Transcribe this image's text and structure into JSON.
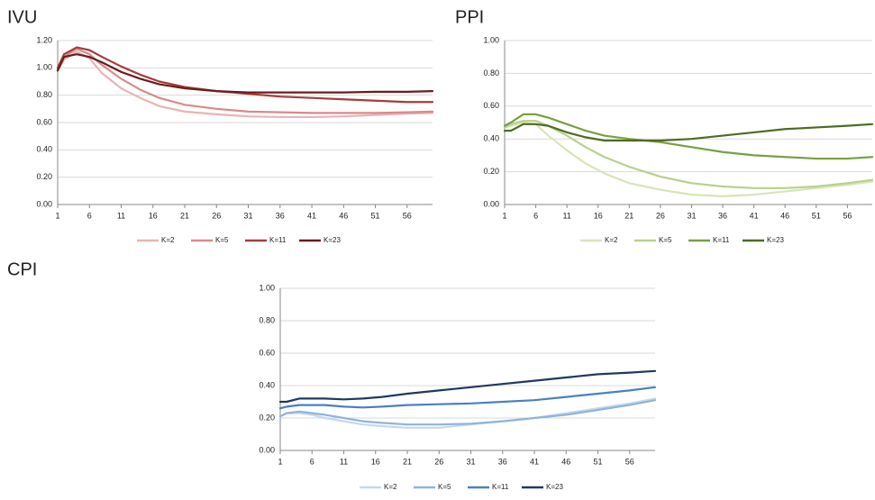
{
  "chart_data": [
    {
      "type": "line",
      "title": "IVU",
      "x": [
        1,
        2,
        4,
        6,
        8,
        11,
        14,
        17,
        21,
        26,
        31,
        36,
        41,
        46,
        51,
        56,
        60
      ],
      "xlim": [
        1,
        60
      ],
      "xticks": [
        1,
        6,
        11,
        16,
        21,
        26,
        31,
        36,
        41,
        46,
        51,
        56
      ],
      "ylim": [
        0,
        1.2
      ],
      "yticks": [
        {
          "value": 0,
          "label": "0.00"
        },
        {
          "value": 0.2,
          "label": "0.20"
        },
        {
          "value": 0.4,
          "label": "0.40"
        },
        {
          "value": 0.6,
          "label": "0.60"
        },
        {
          "value": 0.8,
          "label": "0.80"
        },
        {
          "value": 1.0,
          "label": "1.00"
        },
        {
          "value": 1.2,
          "label": "1.20"
        }
      ],
      "grid": true,
      "legend": "bottom",
      "series": [
        {
          "name": "K=2",
          "color": "#e8b4b4",
          "values": [
            0.98,
            1.06,
            1.12,
            1.07,
            0.96,
            0.85,
            0.78,
            0.72,
            0.68,
            0.66,
            0.645,
            0.64,
            0.64,
            0.645,
            0.655,
            0.665,
            0.67
          ]
        },
        {
          "name": "K=5",
          "color": "#d88a8a",
          "values": [
            0.99,
            1.08,
            1.14,
            1.1,
            1.02,
            0.92,
            0.84,
            0.78,
            0.73,
            0.7,
            0.68,
            0.675,
            0.67,
            0.67,
            0.67,
            0.675,
            0.68
          ]
        },
        {
          "name": "K=11",
          "color": "#a63c3c",
          "values": [
            1.0,
            1.1,
            1.15,
            1.13,
            1.08,
            1.01,
            0.95,
            0.9,
            0.86,
            0.83,
            0.81,
            0.79,
            0.78,
            0.77,
            0.76,
            0.75,
            0.75
          ]
        },
        {
          "name": "K=23",
          "color": "#6a1c1c",
          "values": [
            0.98,
            1.08,
            1.1,
            1.08,
            1.04,
            0.97,
            0.92,
            0.88,
            0.85,
            0.83,
            0.82,
            0.82,
            0.82,
            0.82,
            0.825,
            0.825,
            0.83
          ]
        }
      ]
    },
    {
      "type": "line",
      "title": "PPI",
      "x": [
        1,
        2,
        4,
        6,
        8,
        11,
        14,
        17,
        21,
        26,
        31,
        36,
        41,
        46,
        51,
        56,
        60
      ],
      "xlim": [
        1,
        60
      ],
      "xticks": [
        1,
        6,
        11,
        16,
        21,
        26,
        31,
        36,
        41,
        46,
        51,
        56
      ],
      "ylim": [
        0,
        1.0
      ],
      "yticks": [
        {
          "value": 0,
          "label": "0.00"
        },
        {
          "value": 0.2,
          "label": "0.20"
        },
        {
          "value": 0.4,
          "label": "0.40"
        },
        {
          "value": 0.6,
          "label": "0.60"
        },
        {
          "value": 0.8,
          "label": "0.80"
        },
        {
          "value": 1.0,
          "label": "1.00"
        }
      ],
      "grid": true,
      "legend": "bottom",
      "series": [
        {
          "name": "K=2",
          "color": "#d7e5b8",
          "values": [
            0.47,
            0.48,
            0.5,
            0.49,
            0.42,
            0.33,
            0.25,
            0.19,
            0.13,
            0.09,
            0.06,
            0.05,
            0.06,
            0.08,
            0.1,
            0.12,
            0.14
          ]
        },
        {
          "name": "K=5",
          "color": "#b9d18c",
          "values": [
            0.47,
            0.49,
            0.51,
            0.51,
            0.48,
            0.42,
            0.35,
            0.29,
            0.23,
            0.17,
            0.13,
            0.11,
            0.1,
            0.1,
            0.11,
            0.13,
            0.15
          ]
        },
        {
          "name": "K=11",
          "color": "#77a140",
          "values": [
            0.48,
            0.5,
            0.55,
            0.55,
            0.53,
            0.49,
            0.45,
            0.42,
            0.4,
            0.38,
            0.35,
            0.32,
            0.3,
            0.29,
            0.28,
            0.28,
            0.29
          ]
        },
        {
          "name": "K=23",
          "color": "#4f6b22",
          "values": [
            0.45,
            0.45,
            0.49,
            0.49,
            0.48,
            0.44,
            0.41,
            0.39,
            0.39,
            0.39,
            0.4,
            0.42,
            0.44,
            0.46,
            0.47,
            0.48,
            0.49
          ]
        }
      ]
    },
    {
      "type": "line",
      "title": "CPI",
      "x": [
        1,
        2,
        4,
        6,
        8,
        11,
        14,
        17,
        21,
        26,
        31,
        36,
        41,
        46,
        51,
        56,
        60
      ],
      "xlim": [
        1,
        60
      ],
      "xticks": [
        1,
        6,
        11,
        16,
        21,
        26,
        31,
        36,
        41,
        46,
        51,
        56
      ],
      "ylim": [
        0,
        1.0
      ],
      "yticks": [
        {
          "value": 0,
          "label": "0.00"
        },
        {
          "value": 0.2,
          "label": "0.20"
        },
        {
          "value": 0.4,
          "label": "0.40"
        },
        {
          "value": 0.6,
          "label": "0.60"
        },
        {
          "value": 0.8,
          "label": "0.80"
        },
        {
          "value": 1.0,
          "label": "1.00"
        }
      ],
      "grid": true,
      "legend": "bottom",
      "series": [
        {
          "name": "K=2",
          "color": "#c6d8ec",
          "values": [
            0.21,
            0.23,
            0.23,
            0.22,
            0.2,
            0.18,
            0.16,
            0.15,
            0.14,
            0.14,
            0.16,
            0.18,
            0.2,
            0.23,
            0.26,
            0.29,
            0.32
          ]
        },
        {
          "name": "K=5",
          "color": "#8fb3dd",
          "values": [
            0.21,
            0.23,
            0.24,
            0.23,
            0.22,
            0.2,
            0.18,
            0.17,
            0.16,
            0.16,
            0.165,
            0.18,
            0.2,
            0.22,
            0.25,
            0.28,
            0.31
          ]
        },
        {
          "name": "K=11",
          "color": "#4a80c2",
          "values": [
            0.26,
            0.27,
            0.28,
            0.28,
            0.28,
            0.27,
            0.265,
            0.27,
            0.28,
            0.285,
            0.29,
            0.3,
            0.31,
            0.33,
            0.35,
            0.37,
            0.39
          ]
        },
        {
          "name": "K=23",
          "color": "#1f3a60",
          "values": [
            0.3,
            0.3,
            0.32,
            0.32,
            0.32,
            0.315,
            0.32,
            0.33,
            0.35,
            0.37,
            0.39,
            0.41,
            0.43,
            0.45,
            0.47,
            0.48,
            0.49
          ]
        }
      ]
    }
  ]
}
